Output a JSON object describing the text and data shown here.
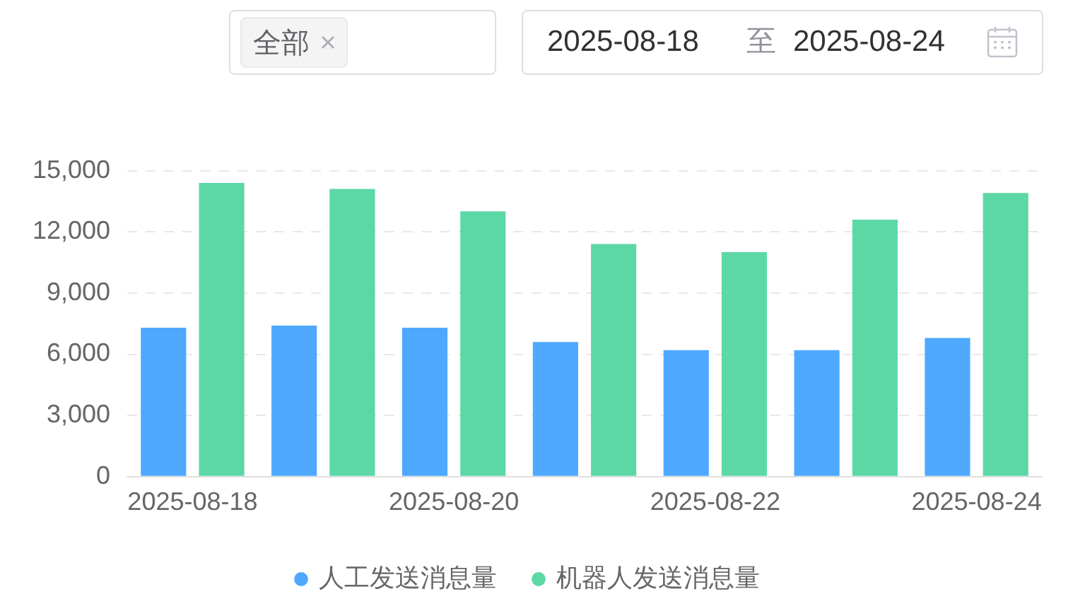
{
  "chart_data": {
    "type": "bar",
    "categories": [
      "2025-08-18",
      null,
      "2025-08-20",
      null,
      "2025-08-22",
      null,
      "2025-08-24"
    ],
    "series": [
      {
        "name": "人工发送消息量",
        "color": "#4ea9fe",
        "values": [
          7300,
          7400,
          7300,
          6600,
          6200,
          6200,
          6800
        ]
      },
      {
        "name": "机器人发送消息量",
        "color": "#5cd8a6",
        "values": [
          14400,
          14100,
          13000,
          11400,
          11000,
          12600,
          13900
        ]
      }
    ],
    "ylim": [
      0,
      15000
    ],
    "yticks": [
      0,
      {
        "value": 3000,
        "label": "3,000"
      },
      {
        "value": 6000,
        "label": "6,000"
      },
      {
        "value": 9000,
        "label": "9,000"
      },
      {
        "value": 12000,
        "label": "12,000"
      },
      {
        "value": 15000,
        "label": "15,000"
      }
    ],
    "grid": "y",
    "legend": "bottom",
    "annotations": [
      "全部",
      "2025-08-18",
      "至",
      "2025-08-24"
    ]
  }
}
